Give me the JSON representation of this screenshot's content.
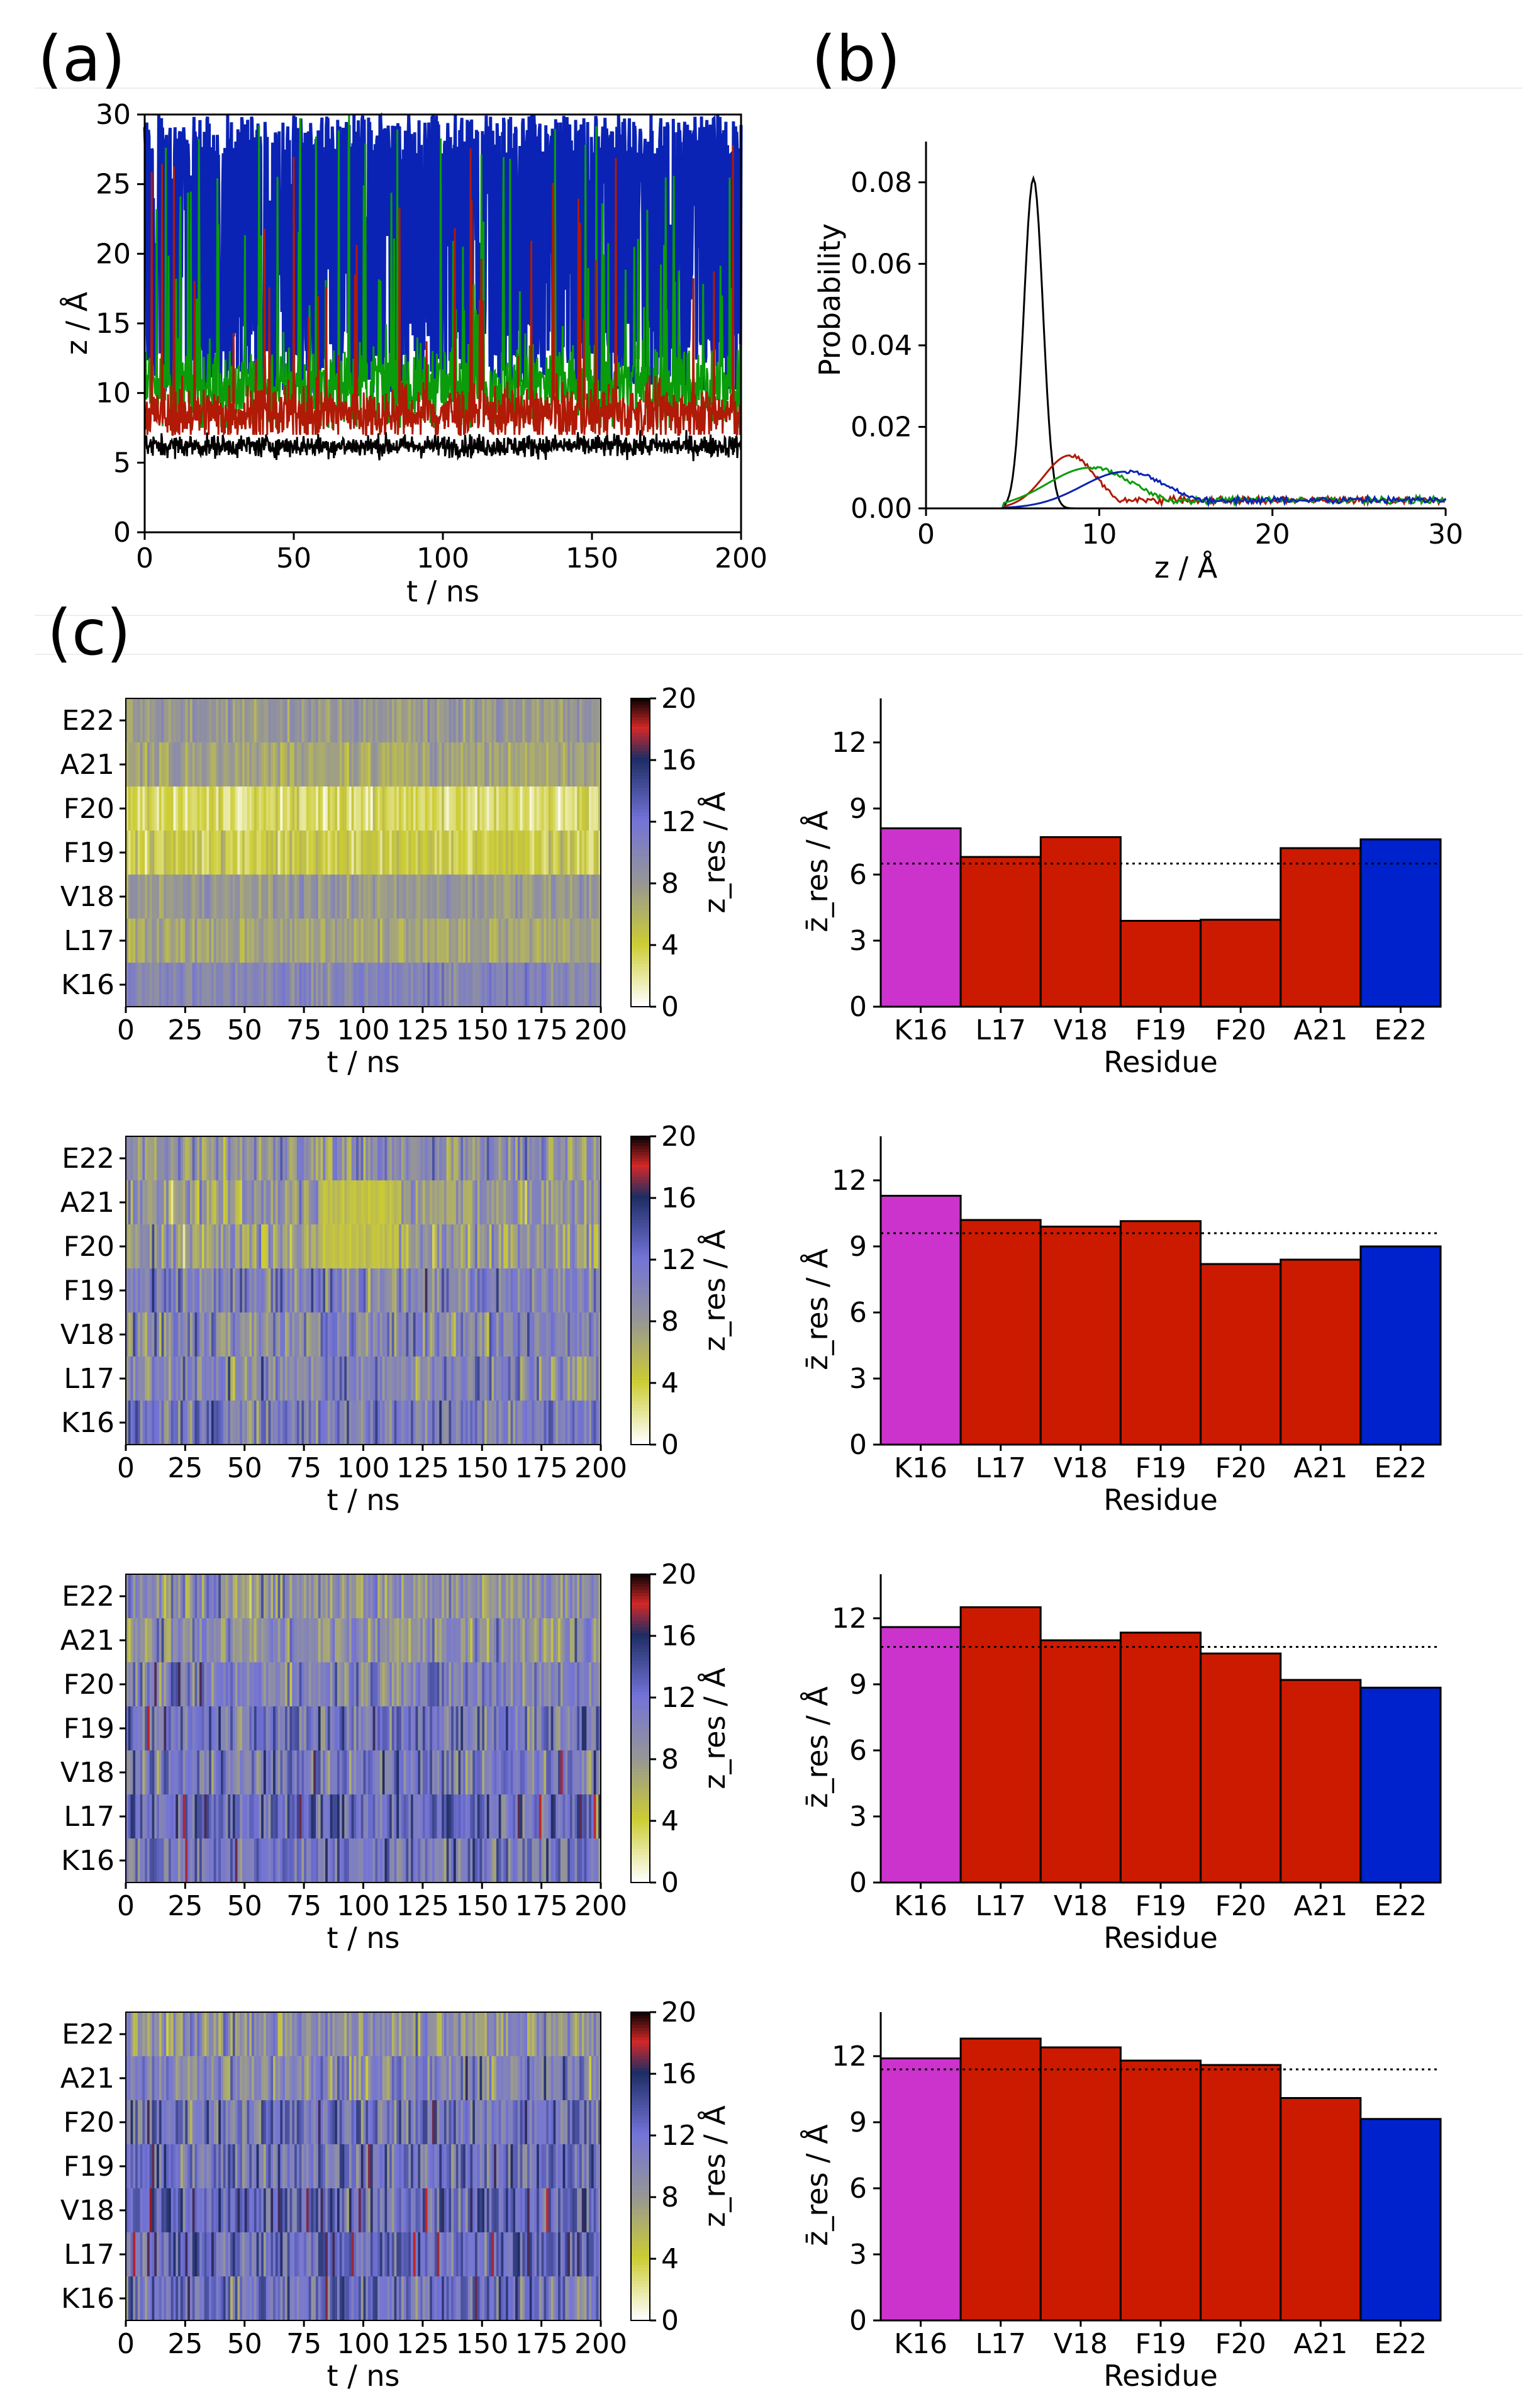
{
  "panel_labels": {
    "a": "(a)",
    "b": "(b)",
    "c": "(c)"
  },
  "colors": {
    "black": "#000000",
    "red": "#b01a06",
    "green": "#0a9c0a",
    "blue": "#0a23b4",
    "magenta": "#cc33cc",
    "bar_red": "#cc1a00",
    "bar_blue": "#0022cc"
  },
  "chart_data": [
    {
      "id": "a",
      "type": "line",
      "title": "",
      "xlabel": "t / ns",
      "ylabel": "z / Å",
      "xlim": [
        0,
        200
      ],
      "ylim": [
        0,
        30
      ],
      "xticks": [
        0,
        50,
        100,
        150,
        200
      ],
      "yticks": [
        0,
        5,
        10,
        15,
        20,
        25,
        30
      ],
      "series": [
        {
          "name": "blue",
          "color": "#0a23b4",
          "base": 20,
          "spread": 10,
          "floor": 10
        },
        {
          "name": "green",
          "color": "#0a9c0a",
          "base": 10.5,
          "spread": 3,
          "floor": 7.5
        },
        {
          "name": "red",
          "color": "#b01a06",
          "base": 8.5,
          "spread": 2,
          "floor": 7
        },
        {
          "name": "black",
          "color": "#000000",
          "base": 6.2,
          "spread": 0.8,
          "floor": 4.8
        }
      ]
    },
    {
      "id": "b",
      "type": "line",
      "xlabel": "z / Å",
      "ylabel": "Probability",
      "xlim": [
        0,
        30
      ],
      "ylim": [
        0,
        0.09
      ],
      "xticks": [
        0,
        10,
        20,
        30
      ],
      "yticks": [
        0.0,
        0.02,
        0.04,
        0.06,
        0.08
      ],
      "ytick_labels": [
        "0.00",
        "0.02",
        "0.04",
        "0.06",
        "0.08"
      ],
      "series": [
        {
          "name": "black",
          "color": "#000000",
          "peak_x": 6.2,
          "peak_y": 0.081,
          "width": 0.55
        },
        {
          "name": "red",
          "color": "#b01a06",
          "peak_x": 8.3,
          "peak_y": 0.013,
          "width": 1.5
        },
        {
          "name": "green",
          "color": "#0a9c0a",
          "peak_x": 9.5,
          "peak_y": 0.01,
          "width": 2.5
        },
        {
          "name": "blue",
          "color": "#0a23b4",
          "peak_x": 11.5,
          "peak_y": 0.009,
          "width": 2.5
        }
      ],
      "tail_value": 0.002
    },
    {
      "id": "c-heatmaps",
      "type": "heatmap",
      "xlabel": "t / ns",
      "xticks": [
        0,
        25,
        50,
        75,
        100,
        125,
        150,
        175,
        200
      ],
      "residues": [
        "K16",
        "L17",
        "V18",
        "F19",
        "F20",
        "A21",
        "E22"
      ],
      "colorbar_label": "z_res / Å",
      "colorbar_ticks": [
        0,
        4,
        8,
        12,
        16,
        20
      ],
      "panels": [
        {
          "row": 1,
          "means": [
            10,
            7,
            8,
            4,
            3,
            7,
            8
          ]
        },
        {
          "row": 2,
          "means": [
            11,
            10,
            10,
            10,
            8,
            8,
            9
          ]
        },
        {
          "row": 3,
          "means": [
            11.5,
            12.5,
            11,
            11.5,
            10.5,
            9,
            9
          ]
        },
        {
          "row": 4,
          "means": [
            12,
            12.8,
            12.4,
            11.8,
            11.6,
            10,
            9
          ]
        }
      ]
    },
    {
      "id": "c-bars",
      "type": "bar",
      "categories": [
        "K16",
        "L17",
        "V18",
        "F19",
        "F20",
        "A21",
        "E22"
      ],
      "xlabel": "Residue",
      "ylabel": "z̄_res / Å",
      "ylim": [
        0,
        14
      ],
      "yticks": [
        0,
        3,
        6,
        9,
        12
      ],
      "series": [
        {
          "row": 1,
          "values": [
            8.1,
            6.8,
            7.7,
            3.9,
            3.95,
            7.2,
            7.6
          ],
          "mean_line": 6.5
        },
        {
          "row": 2,
          "values": [
            11.3,
            10.2,
            9.9,
            10.15,
            8.2,
            8.4,
            9.0
          ],
          "mean_line": 9.6
        },
        {
          "row": 3,
          "values": [
            11.6,
            12.5,
            11.0,
            11.35,
            10.4,
            9.2,
            8.85
          ],
          "mean_line": 10.7
        },
        {
          "row": 4,
          "values": [
            11.9,
            12.8,
            12.4,
            11.8,
            11.6,
            10.1,
            9.15
          ],
          "mean_line": 11.4
        }
      ],
      "bar_colors": [
        "#cc33cc",
        "#cc1a00",
        "#cc1a00",
        "#cc1a00",
        "#cc1a00",
        "#cc1a00",
        "#0022cc"
      ]
    }
  ]
}
